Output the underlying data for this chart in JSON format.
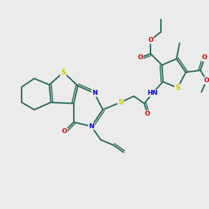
{
  "background_color": "#ebebeb",
  "bond_color": "#2d6b5e",
  "bond_width": 1.5,
  "atom_colors": {
    "S": "#cccc00",
    "N": "#0000cc",
    "O": "#cc0000",
    "C": "#2d6b5e",
    "H": "#555555"
  },
  "font_size": 6.5,
  "fig_size": [
    3.0,
    3.0
  ],
  "dpi": 100
}
